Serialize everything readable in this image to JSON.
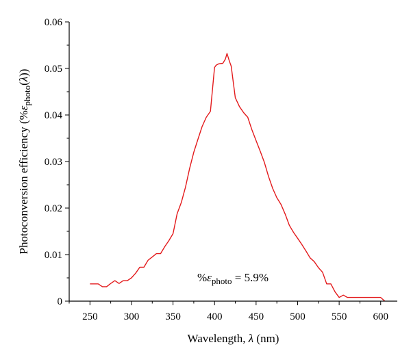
{
  "chart_data": {
    "type": "line",
    "title": "",
    "xlabel": {
      "prefix": "Wavelength, ",
      "symbol": "λ",
      "suffix": " (nm)"
    },
    "ylabel": {
      "prefix": "Photoconversion efficiency (%",
      "symbol": "ε",
      "sub": "photo",
      "middle": "(",
      "symbol2": "λ",
      "suffix": "))"
    },
    "xlim": [
      225,
      620
    ],
    "ylim": [
      0,
      0.06
    ],
    "xticks": [
      250,
      300,
      350,
      400,
      450,
      500,
      550,
      600
    ],
    "xminor_ticks": [
      225,
      275,
      325,
      375,
      425,
      475,
      525,
      575
    ],
    "yticks": [
      0,
      0.01,
      0.02,
      0.03,
      0.04,
      0.05,
      0.06
    ],
    "ytick_labels": [
      "0",
      "0.01",
      "0.02",
      "0.03",
      "0.04",
      "0.05",
      "0.06"
    ],
    "grid": false,
    "annotation": {
      "prefix": "%",
      "symbol": "ε",
      "sub": "photo",
      "suffix": " = 5.9%"
    },
    "series": [
      {
        "color": "#e31a1c",
        "x": [
          250,
          255,
          260,
          265,
          270,
          275,
          280,
          285,
          290,
          295,
          300,
          305,
          310,
          315,
          320,
          325,
          330,
          335,
          340,
          345,
          350,
          355,
          360,
          365,
          370,
          375,
          380,
          385,
          390,
          395,
          400,
          402,
          405,
          410,
          413,
          415,
          418,
          420,
          425,
          430,
          435,
          440,
          445,
          450,
          455,
          460,
          465,
          470,
          475,
          480,
          485,
          490,
          495,
          500,
          505,
          510,
          515,
          520,
          525,
          530,
          535,
          540,
          545,
          550,
          555,
          560,
          565,
          570,
          575,
          580,
          585,
          590,
          595,
          600,
          605
        ],
        "y": [
          0.0037,
          0.0037,
          0.0037,
          0.0031,
          0.0031,
          0.0038,
          0.0044,
          0.0038,
          0.0044,
          0.0044,
          0.005,
          0.006,
          0.0073,
          0.0073,
          0.0088,
          0.0095,
          0.0102,
          0.0102,
          0.0117,
          0.013,
          0.0145,
          0.0188,
          0.0212,
          0.0245,
          0.0285,
          0.032,
          0.0348,
          0.0375,
          0.0395,
          0.0408,
          0.0502,
          0.0507,
          0.051,
          0.0511,
          0.052,
          0.0532,
          0.0515,
          0.0505,
          0.0437,
          0.0418,
          0.0405,
          0.0395,
          0.0368,
          0.0345,
          0.0322,
          0.0298,
          0.0268,
          0.0242,
          0.0222,
          0.0208,
          0.0187,
          0.0163,
          0.0148,
          0.0135,
          0.0122,
          0.0108,
          0.0093,
          0.0085,
          0.0072,
          0.0062,
          0.0037,
          0.0037,
          0.002,
          0.0008,
          0.0013,
          0.0008,
          0.0008,
          0.0008,
          0.0008,
          0.0008,
          0.0008,
          0.0008,
          0.0008,
          0.0008,
          0.0
        ]
      }
    ]
  }
}
